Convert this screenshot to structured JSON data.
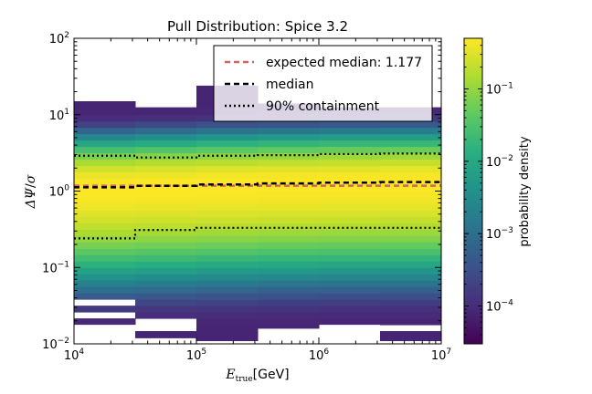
{
  "chart_data": {
    "type": "heatmap",
    "title": "Pull Distribution: Spice 3.2",
    "xlabel_main": "E",
    "xlabel_sub": "true",
    "xlabel_unit": "[GeV]",
    "ylabel_main": "ΔΨ",
    "ylabel_sep": "/",
    "ylabel_denominator": "σ",
    "x_scale": "log",
    "y_scale": "log",
    "xlim": [
      10000,
      10000000
    ],
    "ylim": [
      0.01,
      100
    ],
    "x_ticks": [
      {
        "base": "10",
        "exp": "4",
        "value": 10000
      },
      {
        "base": "10",
        "exp": "5",
        "value": 100000
      },
      {
        "base": "10",
        "exp": "6",
        "value": 1000000
      },
      {
        "base": "10",
        "exp": "7",
        "value": 10000000
      }
    ],
    "y_ticks": [
      {
        "base": "10",
        "exp": "−2",
        "value": 0.01
      },
      {
        "base": "10",
        "exp": "−1",
        "value": 0.1
      },
      {
        "base": "10",
        "exp": "0",
        "value": 1
      },
      {
        "base": "10",
        "exp": "1",
        "value": 10
      },
      {
        "base": "10",
        "exp": "2",
        "value": 100
      }
    ],
    "x_bin_edges": [
      10000,
      31623,
      100000,
      316228,
      1000000,
      3162278,
      10000000
    ],
    "colorbar": {
      "label": "probability density",
      "scale": "log",
      "range": [
        3e-05,
        0.5
      ],
      "ticks": [
        {
          "base": "10",
          "exp": "−1",
          "value": 0.1
        },
        {
          "base": "10",
          "exp": "−2",
          "value": 0.01
        },
        {
          "base": "10",
          "exp": "−3",
          "value": 0.001
        },
        {
          "base": "10",
          "exp": "−4",
          "value": 0.0001
        }
      ]
    },
    "column_extents": [
      {
        "low": 0.018,
        "high": 15,
        "gaps": [
          [
            0.033,
            0.042
          ],
          [
            0.022,
            0.025
          ]
        ]
      },
      {
        "low": 0.012,
        "high": 12.5,
        "gaps": [
          [
            0.016,
            0.02
          ]
        ]
      },
      {
        "low": 0.011,
        "high": 24,
        "gaps": []
      },
      {
        "low": 0.016,
        "high": 14,
        "gaps": []
      },
      {
        "low": 0.018,
        "high": 12.5,
        "gaps": [
          [
            0.02,
            0.022
          ]
        ]
      },
      {
        "low": 0.011,
        "high": 12.5,
        "gaps": [
          [
            0.016,
            0.019
          ]
        ]
      }
    ],
    "series": [
      {
        "name": "expected median: 1.177",
        "style": "dashed",
        "color": "#cc6666",
        "x": [
          10000,
          31623,
          100000,
          316228,
          1000000,
          3162278,
          10000000
        ],
        "y": [
          1.177,
          1.177,
          1.177,
          1.177,
          1.177,
          1.177,
          1.177
        ]
      },
      {
        "name": "median",
        "style": "dashed",
        "color": "#000000",
        "x": [
          10000,
          31623,
          100000,
          316228,
          1000000,
          3162278,
          10000000
        ],
        "y": [
          1.12,
          1.17,
          1.22,
          1.26,
          1.29,
          1.31,
          1.31
        ]
      },
      {
        "name": "90% containment",
        "style": "dotted",
        "color": "#000000",
        "x": [
          10000,
          31623,
          100000,
          316228,
          1000000,
          3162278,
          10000000
        ],
        "y_upper": [
          2.9,
          2.75,
          2.9,
          2.95,
          3.05,
          3.1,
          3.2
        ],
        "y_lower": [
          0.24,
          0.31,
          0.33,
          0.33,
          0.33,
          0.33,
          0.33
        ]
      }
    ],
    "legend_position": "upper right"
  }
}
